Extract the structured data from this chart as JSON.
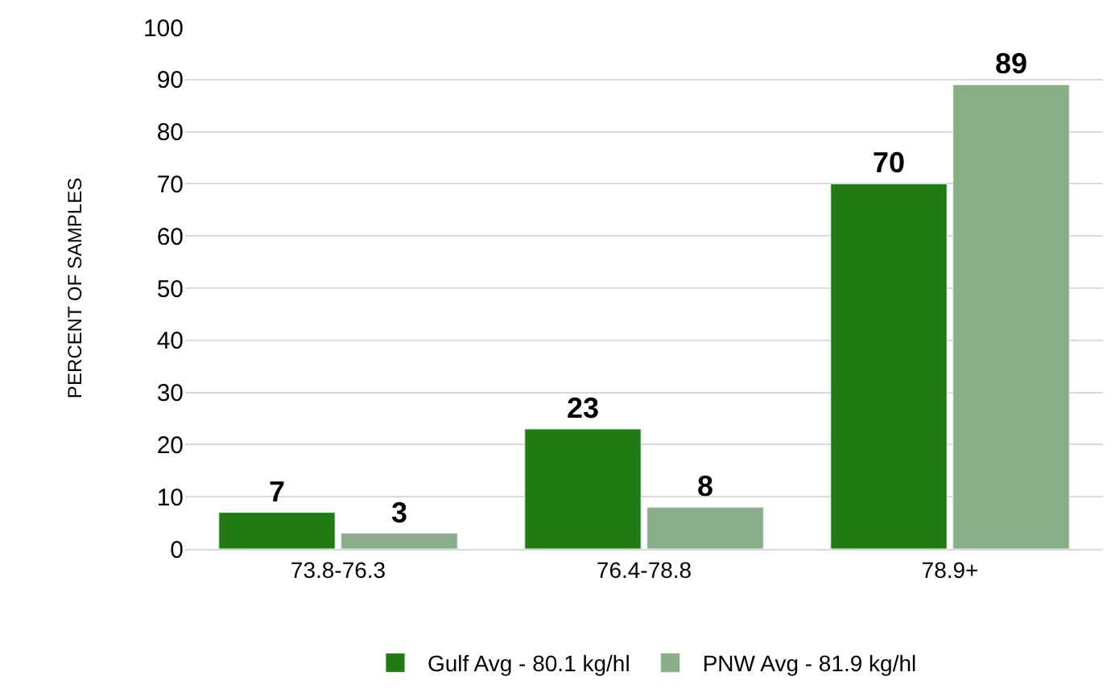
{
  "chart_data": {
    "type": "bar",
    "ylabel": "PERCENT OF SAMPLES",
    "categories": [
      "73.8-76.3",
      "76.4-78.8",
      "78.9+"
    ],
    "series": [
      {
        "name": "Gulf Avg - 80.1 kg/hl",
        "color": "#217a12",
        "values": [
          7,
          23,
          70
        ]
      },
      {
        "name": "PNW Avg - 81.9 kg/hl",
        "color": "#8aae88",
        "values": [
          3,
          8,
          89
        ]
      }
    ],
    "ylim": [
      0,
      100
    ],
    "yticks": [
      0,
      10,
      20,
      30,
      40,
      50,
      60,
      70,
      80,
      90,
      100
    ],
    "grid": "y",
    "legend": "bottom",
    "data_labels": true
  }
}
